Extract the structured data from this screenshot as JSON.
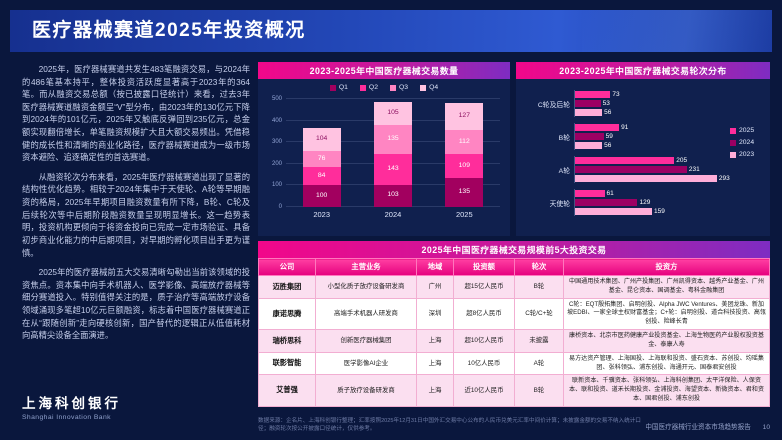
{
  "slide": {
    "title": "医疗器械赛道2025年投资概况",
    "page_number": "10",
    "footer_report": "中国医疗器械行业资本市场趋势报告",
    "source_note": "数据来源：企名片、上海科创银行整理；汇率按照2025年12月31日中国外汇交易中心公布的人民币兑美元汇率中间价计算；未披露金额的交易不纳入统计口径；融资轮次按公开披露口径统计，仅供参考。"
  },
  "logo": {
    "cn": "上海科创银行",
    "en": "Shanghai Innovation Bank"
  },
  "colors": {
    "background_navy": "#0a173d",
    "banner_blue": "#2348b8",
    "accent_pink": "#f2078a",
    "panel_navy": "#10204e"
  },
  "left_text": {
    "p1": "2025年，医疗器械赛道共发生483笔融资交易，与2024年的486笔基本持平，整体投资活跃度显著高于2023年的364笔。而从融资交易总额（按已披露口径统计）来看，过去3年医疗器械赛道融资金额呈“V”型分布，由2023年的130亿元下降到2024年的101亿元，2025年又触底反弹回到235亿元，总金额实现翻倍增长，单笔融资规模扩大且大额交易频出。凭借稳健的成长性和清晰的商业化路径，医疗器械赛道成为一级市场资本避险、追逐确定性的首选赛道。",
    "p2": "从融资轮次分布来看，2025年医疗器械赛道出现了显著的结构性优化趋势。相较于2024年集中于天使轮、A轮等早期融资的格局，2025年早期项目融资数量有所下降，B轮、C轮及后续轮次等中后期阶段融资数量呈现明显增长。这一趋势表明，投资机构更倾向于将资金投向已完成一定市场验证、具备初步商业化能力的中后期项目，对早期的孵化项目出手更为谨慎。",
    "p3": "2025年的医疗器械前五大交易清晰勾勒出当前该领域的投资焦点。资本集中向手术机器人、医学影像、高端放疗器械等细分赛道投入。特别值得关注的是，质子治疗等高端放疗设备领域涌现多笔超10亿元巨额融资，标志着中国医疗器械赛道正在从“跟随创新”走向硬核创新，国产替代的逻辑正从低值耗材向高精尖设备全面演进。"
  },
  "chart_data": [
    {
      "type": "bar",
      "stacked": true,
      "title": "2023-2025年中国医疗器械交易数量",
      "categories": [
        "2023",
        "2024",
        "2025"
      ],
      "series": [
        {
          "name": "Q1",
          "color": "#a2005f",
          "values": [
            100,
            103,
            135
          ]
        },
        {
          "name": "Q2",
          "color": "#ff2d9b",
          "values": [
            84,
            143,
            109
          ]
        },
        {
          "name": "Q3",
          "color": "#ff85c2",
          "values": [
            76,
            135,
            112
          ]
        },
        {
          "name": "Q4",
          "color": "#ffc3e1",
          "label_dark": true,
          "values": [
            104,
            105,
            127
          ]
        }
      ],
      "totals": [
        364,
        486,
        483
      ],
      "ylim": [
        0,
        500
      ],
      "yticks": [
        0,
        100,
        200,
        300,
        400,
        500
      ],
      "legend_position": "top",
      "grid": true
    },
    {
      "type": "bar",
      "orientation": "horizontal",
      "title": "2023-2025年中国医疗器械交易轮次分布",
      "categories": [
        "C轮及后轮",
        "B轮",
        "A轮",
        "天使轮"
      ],
      "series": [
        {
          "name": "2025",
          "color": "#ff2d9b",
          "values": [
            73,
            91,
            205,
            61
          ]
        },
        {
          "name": "2024",
          "color": "#9c0063",
          "values": [
            53,
            59,
            231,
            129
          ]
        },
        {
          "name": "2023",
          "color": "#ffaed9",
          "values": [
            56,
            56,
            293,
            159
          ]
        }
      ],
      "xlim": [
        0,
        320
      ],
      "legend_position": "right",
      "grid": false
    }
  ],
  "table": {
    "title": "2025年中国医疗器械交易规模前5大投资交易",
    "headers": [
      "公司",
      "主营业务",
      "地域",
      "投资额",
      "轮次",
      "投资方"
    ],
    "rows": [
      [
        "迈胜集团",
        "小型化质子放疗设备研发商",
        "广州",
        "超15亿人民币",
        "B轮",
        "中国通用技术集团、广州产投集团、广州凯得资本、越秀产业基金、广州基金、昆仑资本、国调基金、粤科金融集团"
      ],
      [
        "康诺思腾",
        "高端手术机器人研发商",
        "深圳",
        "超8亿人民币",
        "C轮/C+轮",
        "C轮：EQT殷拓集团、启明创投、Alpha JWC Ventures、美团龙珠、新加坡EDBI、一家全球主权财富基金；C+轮：启明创投、道合科技投资、高瓴创投、险峰长青"
      ],
      [
        "瑞桥思科",
        "创新医疗器械集团",
        "上海",
        "超10亿人民币",
        "未披露",
        "康桥资本、北京市医药健康产业投资基金、上海生物医药产业股权投资基金、泰康人寿"
      ],
      [
        "联影智能",
        "医学影像AI企业",
        "上海",
        "10亿人民币",
        "A轮",
        "易方达资产管理、上海国投、上海联和投资、盛石资本、苏创投、均瑶集团、张科领弘、浦东创投、海通开元、国泰君安创投"
      ],
      [
        "艾普强",
        "质子放疗设备研发商",
        "上海",
        "近10亿人民币",
        "B轮",
        "联新资本、千骥资本、张科领弘、上海科创集团、太平洋保险、人保资本、联和投资、道禾长期投资、金浦投资、海望资本、新微资本、君和资本、国君创投、浦东创投"
      ]
    ]
  }
}
